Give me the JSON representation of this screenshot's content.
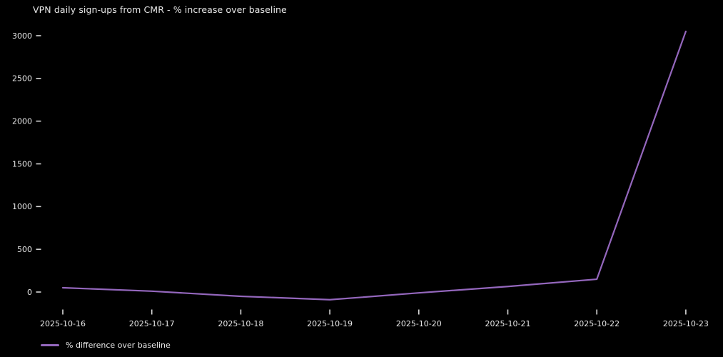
{
  "chart_data": {
    "type": "line",
    "title": "VPN daily sign-ups from CMR - % increase over baseline",
    "categories": [
      "2025-10-16",
      "2025-10-17",
      "2025-10-18",
      "2025-10-19",
      "2025-10-20",
      "2025-10-21",
      "2025-10-22",
      "2025-10-23"
    ],
    "series": [
      {
        "name": "% difference over baseline",
        "values": [
          50,
          10,
          -50,
          -90,
          -10,
          65,
          150,
          3050
        ]
      }
    ],
    "yticks": [
      0,
      500,
      1000,
      1500,
      2000,
      2500,
      3000
    ],
    "ylim": [
      -250,
      3210
    ],
    "xlabel": "",
    "ylabel": "",
    "grid": false,
    "legend": {
      "label": "% difference over baseline",
      "position": "lower-left-outside"
    },
    "colors": {
      "background": "#000000",
      "line": "#9467bd",
      "text": "#e8e8e8",
      "tick": "#d9d9d9"
    }
  }
}
